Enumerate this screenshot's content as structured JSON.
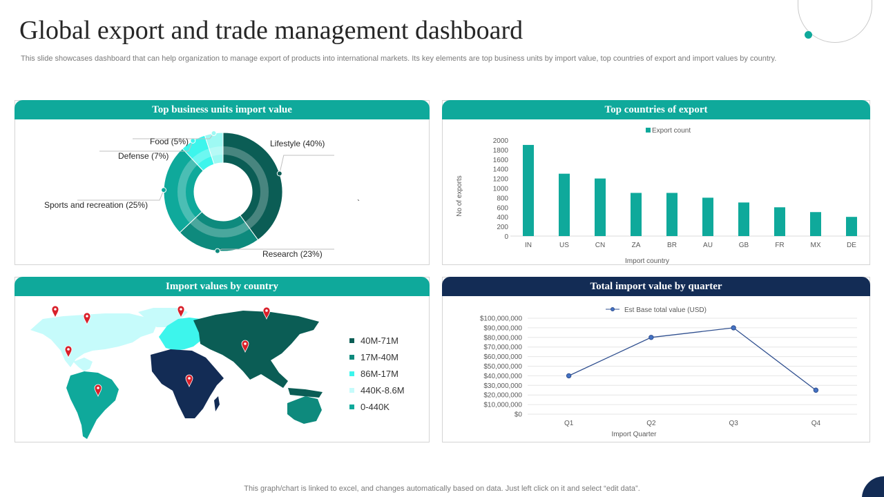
{
  "page": {
    "title": "Global export and trade management dashboard",
    "subtitle": "This slide showcases dashboard that can help organization to manage export of products into international markets. Its key elements are top business units by import value, top countries of export and import values by country.",
    "footnote": "This graph/chart is linked to excel,  and changes automatically based on data. Just left click on it and select “edit data”.",
    "stray_mark": "`"
  },
  "colors": {
    "teal": "#0fa99b",
    "navy": "#132c55",
    "dark_teal": "#0b5d55",
    "mid_teal": "#0e8a7d",
    "bright_cyan": "#3df5ec",
    "light_cyan": "#c6fbfb"
  },
  "panels": {
    "business_units": {
      "title": "Top business units import value"
    },
    "export_countries": {
      "title": "Top countries of export"
    },
    "import_map": {
      "title": "Import values by country",
      "legend": [
        {
          "label": "40M-71M",
          "color": "#0b5d55"
        },
        {
          "label": "17M-40M",
          "color": "#0e8a7d"
        },
        {
          "label": "86M-17M",
          "color": "#3df5ec"
        },
        {
          "label": "440K-8.6M",
          "color": "#c6fbfb"
        },
        {
          "label": "0-440K",
          "color": "#0fa99b"
        }
      ]
    },
    "quarter_value": {
      "title": "Total import value by quarter"
    }
  },
  "chart_data": [
    {
      "type": "pie",
      "variant": "doughnut",
      "title": "Top business units import value",
      "slices": [
        {
          "name": "Lifestyle",
          "value": 40,
          "label": "Lifestyle (40%)",
          "color": "#0b5d55"
        },
        {
          "name": "Research",
          "value": 23,
          "label": "Research (23%)",
          "color": "#0e8a7d"
        },
        {
          "name": "Sports and recreation",
          "value": 25,
          "label": "Sports and recreation (25%)",
          "color": "#0fa99b"
        },
        {
          "name": "Defense",
          "value": 7,
          "label": "Defense (7%)",
          "color": "#3df5ec"
        },
        {
          "name": "Food",
          "value": 5,
          "label": "Food (5%)",
          "color": "#9ef9f3"
        }
      ]
    },
    {
      "type": "bar",
      "title": "Top countries of export",
      "series_name": "Export count",
      "categories": [
        "IN",
        "US",
        "CN",
        "ZA",
        "BR",
        "AU",
        "GB",
        "FR",
        "MX",
        "DE"
      ],
      "values": [
        1900,
        1300,
        1200,
        900,
        900,
        800,
        700,
        600,
        500,
        400
      ],
      "xlabel": "Import country",
      "ylabel": "No of exports",
      "ylim": [
        0,
        2000
      ],
      "yticks": [
        "0",
        "200",
        "400",
        "600",
        "800",
        "1000",
        "1200",
        "1400",
        "1600",
        "1800",
        "2000"
      ],
      "color": "#0fa99b"
    },
    {
      "type": "line",
      "title": "Total import value by quarter",
      "series_name": "Est Base total value (USD)",
      "categories": [
        "Q1",
        "Q2",
        "Q3",
        "Q4"
      ],
      "values": [
        40000000,
        80000000,
        90000000,
        25000000
      ],
      "xlabel": "Import Quarter",
      "ylabel": "",
      "ylim": [
        0,
        100000000
      ],
      "yticks": [
        "$0",
        "$10,000,000",
        "$20,000,000",
        "$30,000,000",
        "$40,000,000",
        "$50,000,000",
        "$60,000,000",
        "$70,000,000",
        "$80,000,000",
        "$90,000,000",
        "$100,000,000"
      ],
      "color": "#2f4f8f"
    }
  ]
}
